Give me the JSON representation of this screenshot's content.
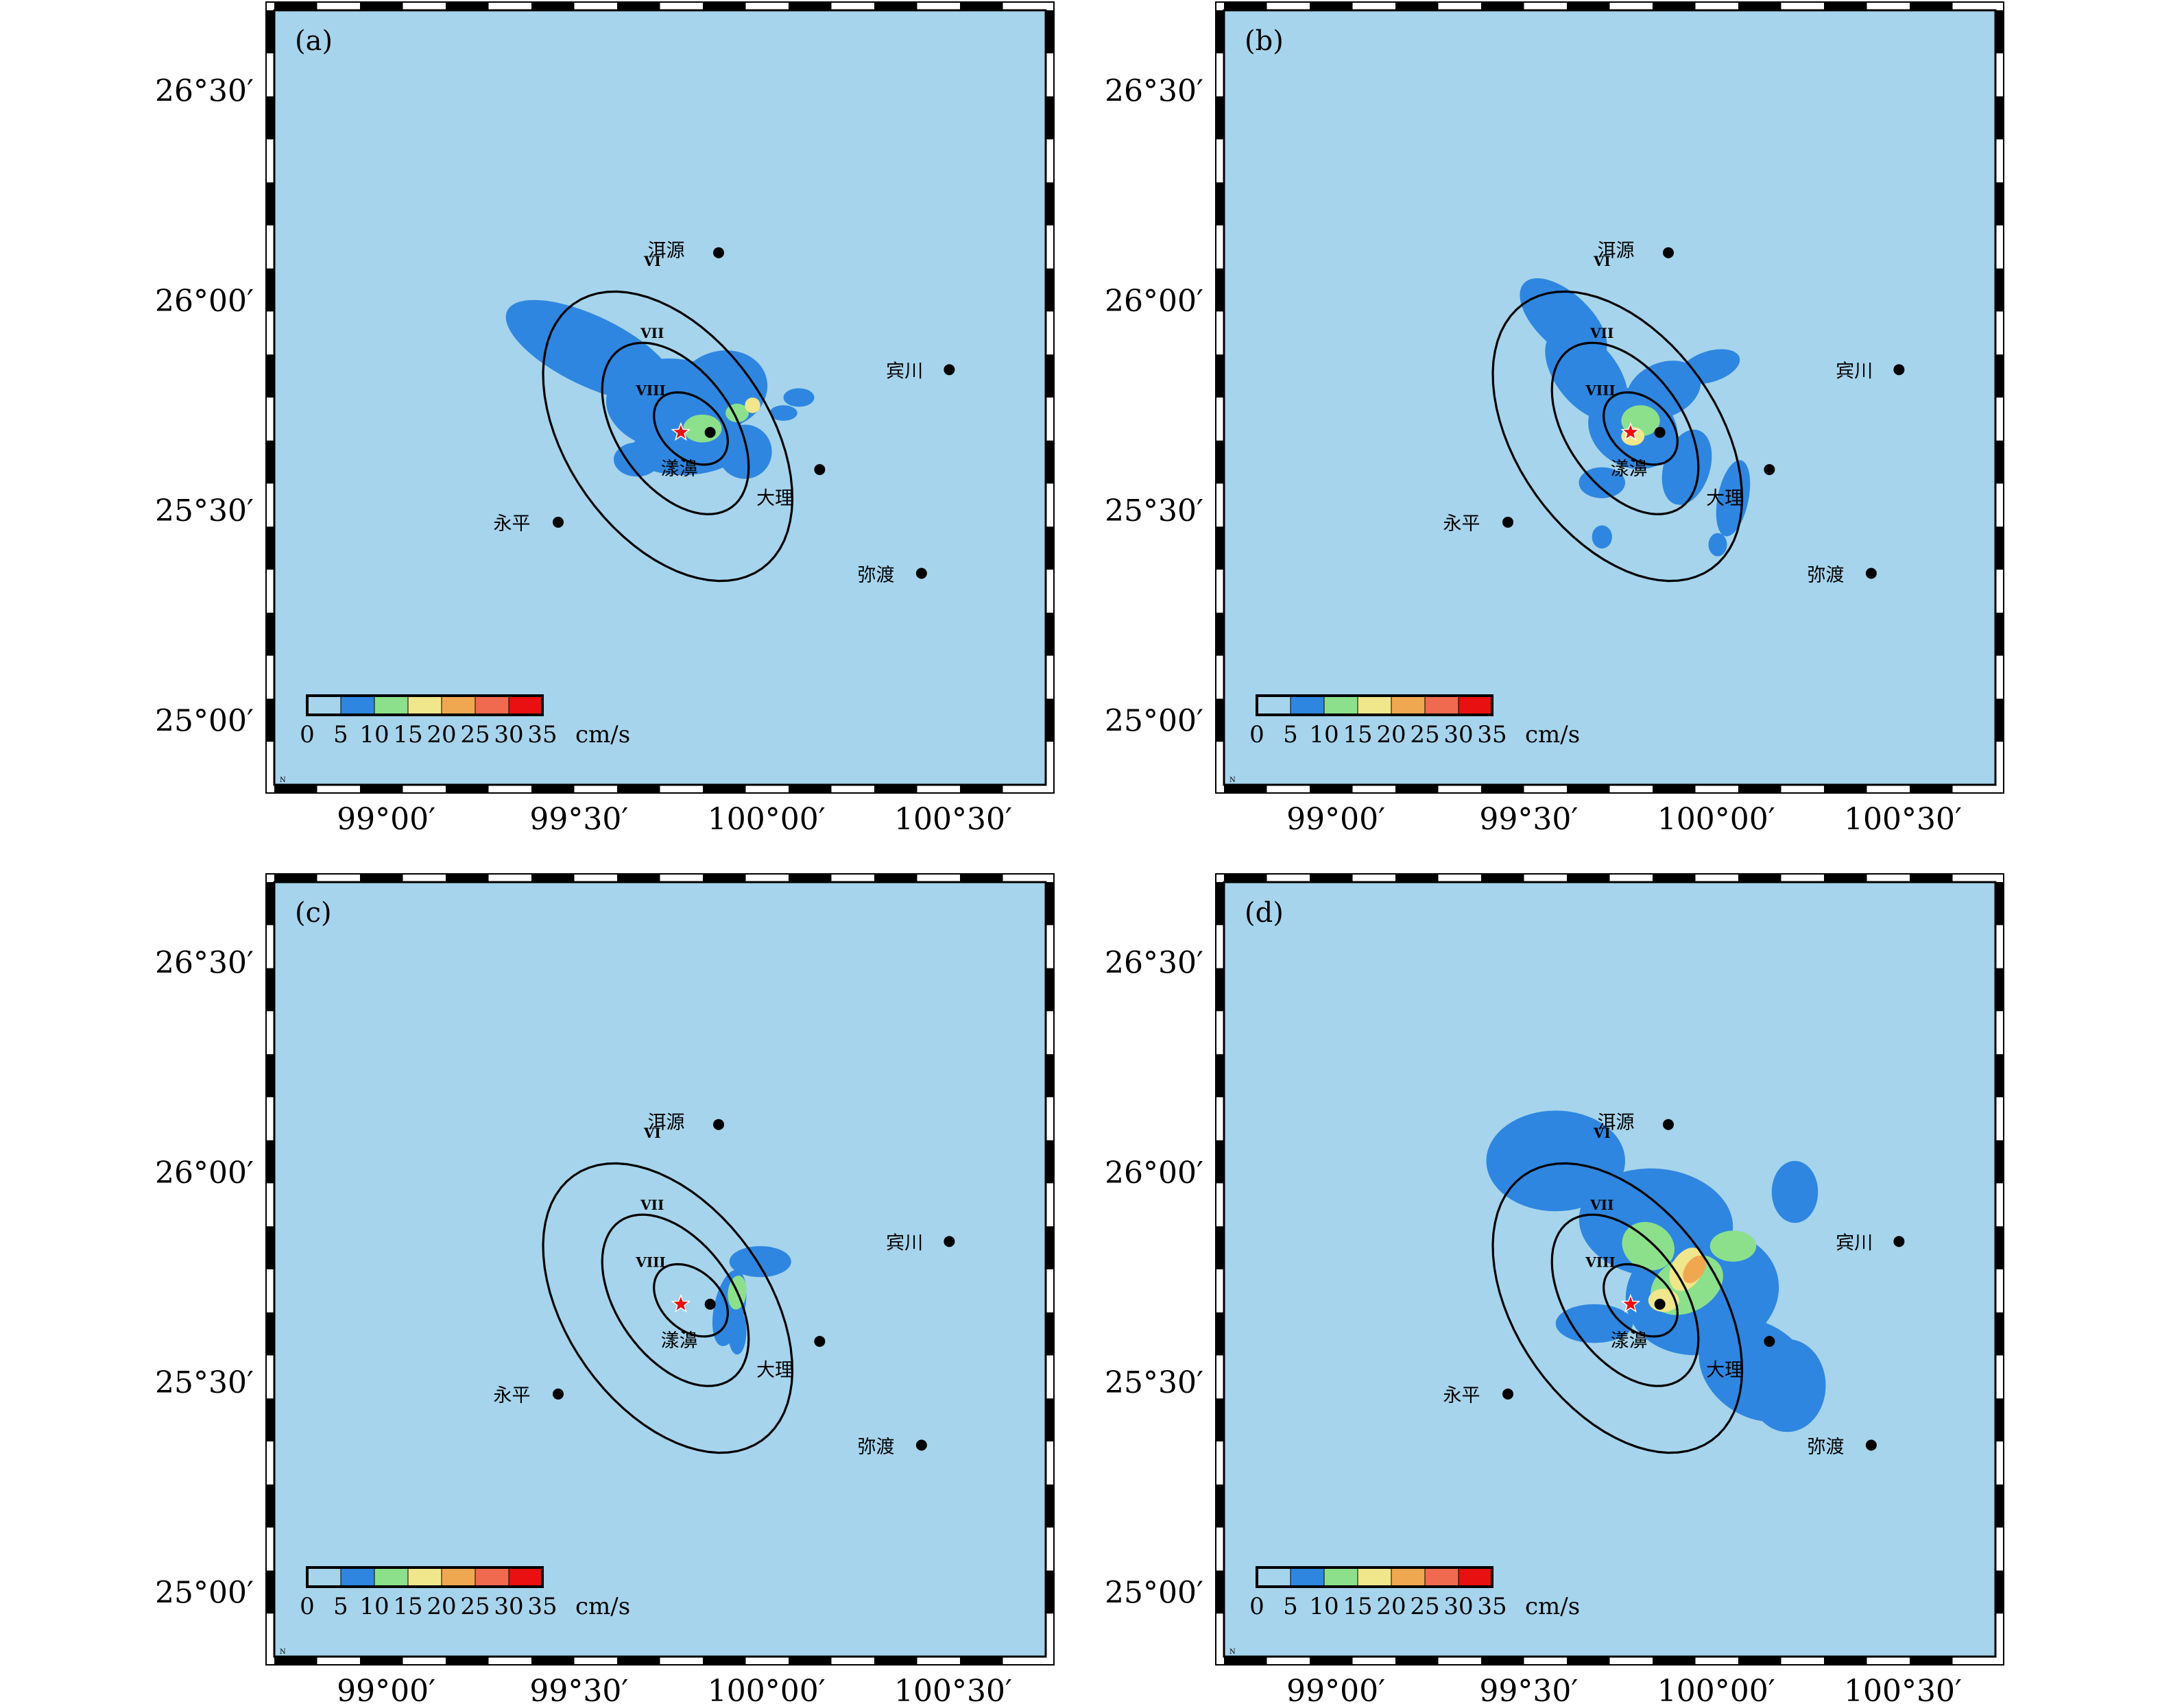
{
  "figure": {
    "panels": [
      {
        "id": "a",
        "label": "(a)"
      },
      {
        "id": "b",
        "label": "(b)"
      },
      {
        "id": "c",
        "label": "(c)"
      },
      {
        "id": "d",
        "label": "(d)"
      }
    ],
    "lat_ticks": [
      "26°30′",
      "26°00′",
      "25°30′",
      "25°00′"
    ],
    "lon_ticks": [
      "99°00′",
      "99°30′",
      "100°00′",
      "100°30′"
    ],
    "scale_north_label": "N",
    "colorbar": {
      "tick_labels": [
        "0",
        "5",
        "10",
        "15",
        "20",
        "25",
        "30",
        "35"
      ],
      "unit": "cm/s",
      "colors": [
        "#a6d4ec",
        "#2e86e0",
        "#8ce08c",
        "#f0e68c",
        "#f0a850",
        "#f06a50",
        "#e81010"
      ]
    },
    "cities": [
      {
        "name": "洱源",
        "id": "eryuan"
      },
      {
        "name": "宾川",
        "id": "binchuan"
      },
      {
        "name": "漾濞",
        "id": "yangbi"
      },
      {
        "name": "大理",
        "id": "dali"
      },
      {
        "name": "永平",
        "id": "yongping"
      },
      {
        "name": "弥渡",
        "id": "midu"
      }
    ],
    "isoseismal_labels": [
      "VI",
      "VII",
      "VIII"
    ],
    "colors": {
      "background": "#a6d4ec",
      "frame": "#000000",
      "epicenter": "#e81010",
      "level1": "#2e86e0",
      "level2": "#8ce08c",
      "level3": "#f0e68c",
      "level4": "#f0a850"
    }
  }
}
